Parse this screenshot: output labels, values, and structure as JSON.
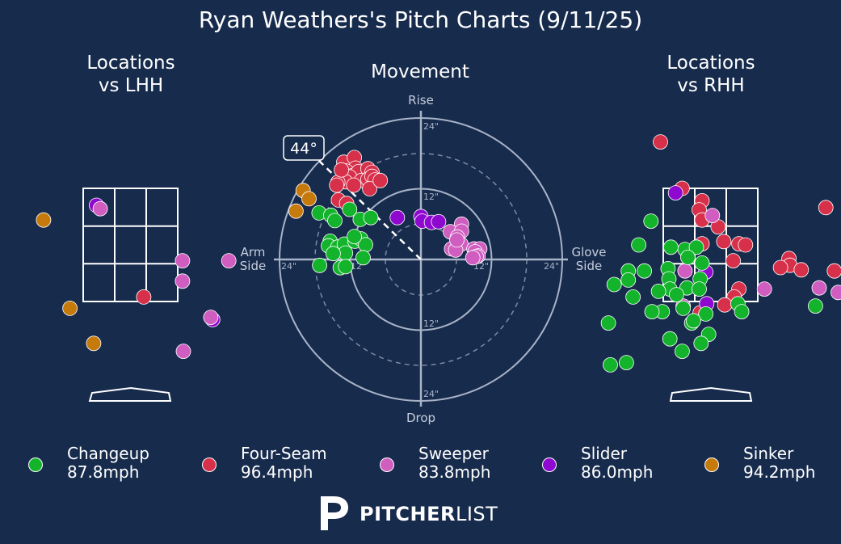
{
  "title": "Ryan Weathers's Pitch Charts (9/11/25)",
  "panels": {
    "lhh_title": "Locations\nvs LHH",
    "movement_title": "Movement",
    "rhh_title": "Locations\nvs RHH"
  },
  "movement_axes": {
    "top": "Rise",
    "bottom": "Drop",
    "left": "Arm\nSide",
    "right": "Glove\nSide",
    "ring_labels": [
      "12\"",
      "24\"",
      "12\"",
      "24\"",
      "24\"",
      "24\"",
      "12\"",
      "12\""
    ],
    "arm_angle_label": "44°",
    "arm_angle_deg": 44
  },
  "colors": {
    "background": "#172b4d",
    "Changeup": "#13b42c",
    "Four-Seam": "#d7304a",
    "Sweeper": "#d05ec0",
    "Slider": "#8f08cf",
    "Sinker": "#c77a0c"
  },
  "legend": [
    {
      "pitch": "Changeup",
      "speed": "87.8mph"
    },
    {
      "pitch": "Four-Seam",
      "speed": "96.4mph"
    },
    {
      "pitch": "Sweeper",
      "speed": "83.8mph"
    },
    {
      "pitch": "Slider",
      "speed": "86.0mph"
    },
    {
      "pitch": "Sinker",
      "speed": "94.2mph"
    }
  ],
  "logo": {
    "bold": "PITCHER",
    "light": "LIST"
  },
  "chart_data": [
    {
      "type": "scatter",
      "title": "Locations vs LHH",
      "xlabel": "",
      "ylabel": "",
      "x_unit": "zone widths from plate center (catcher view)",
      "y_unit": "zone heights from zone bottom",
      "series": [
        {
          "name": "Sinker",
          "points": [
            [
              -0.92,
              0.72
            ],
            [
              -0.64,
              -0.06
            ],
            [
              -0.39,
              -0.37
            ]
          ]
        },
        {
          "name": "Slider",
          "points": [
            [
              -0.36,
              0.85
            ],
            [
              0.87,
              -0.16
            ],
            [
              1.82,
              0.32
            ]
          ]
        },
        {
          "name": "Sweeper",
          "points": [
            [
              -0.32,
              0.82
            ],
            [
              0.55,
              0.36
            ],
            [
              1.04,
              0.36
            ],
            [
              0.55,
              0.18
            ],
            [
              0.85,
              -0.14
            ],
            [
              0.56,
              -0.44
            ]
          ]
        },
        {
          "name": "Four-Seam",
          "points": [
            [
              0.14,
              0.04
            ]
          ]
        }
      ]
    },
    {
      "type": "scatter",
      "title": "Movement",
      "xlabel": "Arm Side / Glove Side (in)",
      "ylabel": "Drop / Rise (in)",
      "xlim": [
        -24,
        24
      ],
      "ylim": [
        -24,
        24
      ],
      "series": [
        {
          "name": "Four-Seam",
          "points": [
            [
              -13.1,
              16.5
            ],
            [
              -11.3,
              17.3
            ],
            [
              -11.1,
              15.5
            ],
            [
              -12.7,
              15
            ],
            [
              -11.7,
              14.2
            ],
            [
              -10.6,
              14.9
            ],
            [
              -9,
              15.4
            ],
            [
              -8.3,
              14.8
            ],
            [
              -12.1,
              14
            ],
            [
              -10.1,
              13.4
            ],
            [
              -9,
              13.6
            ],
            [
              -8.3,
              14.1
            ],
            [
              -7.8,
              13.5
            ],
            [
              -12.8,
              13.2
            ],
            [
              -14.1,
              13.1
            ],
            [
              -11.4,
              12.6
            ],
            [
              -8.7,
              12
            ],
            [
              -14.3,
              12.6
            ],
            [
              -13.5,
              15.2
            ],
            [
              -6.9,
              13.4
            ],
            [
              -14,
              10.1
            ],
            [
              -12.6,
              9.5
            ]
          ]
        },
        {
          "name": "Sinker",
          "points": [
            [
              -20,
              11.7
            ],
            [
              -19,
              10.3
            ],
            [
              -21.2,
              8.2
            ]
          ]
        },
        {
          "name": "Changeup",
          "points": [
            [
              -17.3,
              7.9
            ],
            [
              -15.3,
              7.5
            ],
            [
              -14.6,
              6.6
            ],
            [
              -12.1,
              8.5
            ],
            [
              -10.3,
              6.8
            ],
            [
              -8.5,
              7.1
            ],
            [
              -15.4,
              3.1
            ],
            [
              -15.7,
              2.3
            ],
            [
              -14.1,
              2.1
            ],
            [
              -13,
              2.6
            ],
            [
              -11.2,
              3.1
            ],
            [
              -10.2,
              3.5
            ],
            [
              -9.4,
              2.5
            ],
            [
              -12.8,
              1.1
            ],
            [
              -14.9,
              1
            ],
            [
              -9.8,
              0.3
            ],
            [
              -17.2,
              -1
            ],
            [
              -13.7,
              -1.4
            ],
            [
              -12.8,
              -1.2
            ],
            [
              -11.3,
              3.9
            ]
          ]
        },
        {
          "name": "Slider",
          "points": [
            [
              -4,
              7.1
            ],
            [
              0,
              7.3
            ],
            [
              0.2,
              6.5
            ],
            [
              1.8,
              6.3
            ],
            [
              3,
              6.4
            ]
          ]
        },
        {
          "name": "Sweeper",
          "points": [
            [
              6.9,
              6
            ],
            [
              5,
              4.7
            ],
            [
              6.9,
              4.8
            ],
            [
              6.2,
              3.8
            ],
            [
              6,
              2.4
            ],
            [
              6.8,
              2.6
            ],
            [
              5.2,
              1.8
            ],
            [
              5.9,
              1.6
            ],
            [
              9,
              1.8
            ],
            [
              10,
              1.8
            ],
            [
              9.2,
              1.3
            ],
            [
              9.7,
              0.6
            ],
            [
              9.4,
              0.5
            ],
            [
              8.8,
              0.3
            ],
            [
              6.1,
              3.3
            ]
          ]
        }
      ]
    },
    {
      "type": "scatter",
      "title": "Locations vs RHH",
      "xlabel": "",
      "ylabel": "",
      "x_unit": "zone widths from plate center (catcher view)",
      "y_unit": "zone heights from zone bottom",
      "series": [
        {
          "name": "Four-Seam",
          "points": [
            [
              -0.53,
              1.41
            ],
            [
              -0.3,
              1
            ],
            [
              -0.09,
              0.89
            ],
            [
              -0.12,
              0.81
            ],
            [
              -0.09,
              0.72
            ],
            [
              0.08,
              0.66
            ],
            [
              1.22,
              0.83
            ],
            [
              1.52,
              0.73
            ],
            [
              0.14,
              0.53
            ],
            [
              0.3,
              0.51
            ],
            [
              -0.09,
              0.51
            ],
            [
              0.37,
              0.5
            ],
            [
              0.24,
              0.36
            ],
            [
              0.83,
              0.38
            ],
            [
              0.84,
              0.32
            ],
            [
              0.74,
              0.3
            ],
            [
              0.96,
              0.28
            ],
            [
              1.31,
              0.27
            ],
            [
              0.3,
              0.11
            ],
            [
              0.25,
              0.04
            ],
            [
              0.15,
              -0.03
            ],
            [
              -0.11,
              -0.1
            ],
            [
              2.6,
              0.99
            ]
          ]
        },
        {
          "name": "Slider",
          "points": [
            [
              -0.37,
              0.96
            ],
            [
              -0.05,
              0.26
            ],
            [
              -0.04,
              -0.02
            ]
          ]
        },
        {
          "name": "Sweeper",
          "points": [
            [
              0.02,
              0.76
            ],
            [
              -0.27,
              0.27
            ],
            [
              0.57,
              0.11
            ],
            [
              1.15,
              0.12
            ],
            [
              1.35,
              0.08
            ],
            [
              -0.29,
              -0.04
            ],
            [
              1.58,
              -0.17
            ]
          ]
        },
        {
          "name": "Changeup",
          "points": [
            [
              -0.63,
              0.71
            ],
            [
              -0.76,
              0.5
            ],
            [
              -0.27,
              0.46
            ],
            [
              -0.42,
              0.48
            ],
            [
              -0.15,
              0.48
            ],
            [
              -0.09,
              0.34
            ],
            [
              -0.24,
              0.39
            ],
            [
              -0.87,
              0.27
            ],
            [
              -0.7,
              0.27
            ],
            [
              -0.45,
              0.29
            ],
            [
              -0.44,
              0.2
            ],
            [
              -0.87,
              0.19
            ],
            [
              -0.11,
              0.2
            ],
            [
              -0.25,
              0.12
            ],
            [
              -1.02,
              0.15
            ],
            [
              -0.12,
              0.11
            ],
            [
              -0.43,
              0.11
            ],
            [
              -0.82,
              0.04
            ],
            [
              -0.55,
              0.09
            ],
            [
              -0.36,
              0.06
            ],
            [
              -0.29,
              -0.06
            ],
            [
              -0.51,
              -0.09
            ],
            [
              -0.2,
              -0.19
            ],
            [
              0.29,
              -0.02
            ],
            [
              0.33,
              -0.09
            ],
            [
              -0.05,
              -0.11
            ],
            [
              -0.18,
              -0.17
            ],
            [
              -0.02,
              -0.29
            ],
            [
              -0.1,
              -0.37
            ],
            [
              -0.43,
              -0.33
            ],
            [
              -0.62,
              -0.09
            ],
            [
              -1.08,
              -0.19
            ],
            [
              -1.06,
              -0.56
            ],
            [
              -0.89,
              -0.54
            ],
            [
              -0.3,
              -0.44
            ],
            [
              1.11,
              -0.04
            ],
            [
              1.47,
              -0.55
            ]
          ]
        }
      ]
    }
  ]
}
